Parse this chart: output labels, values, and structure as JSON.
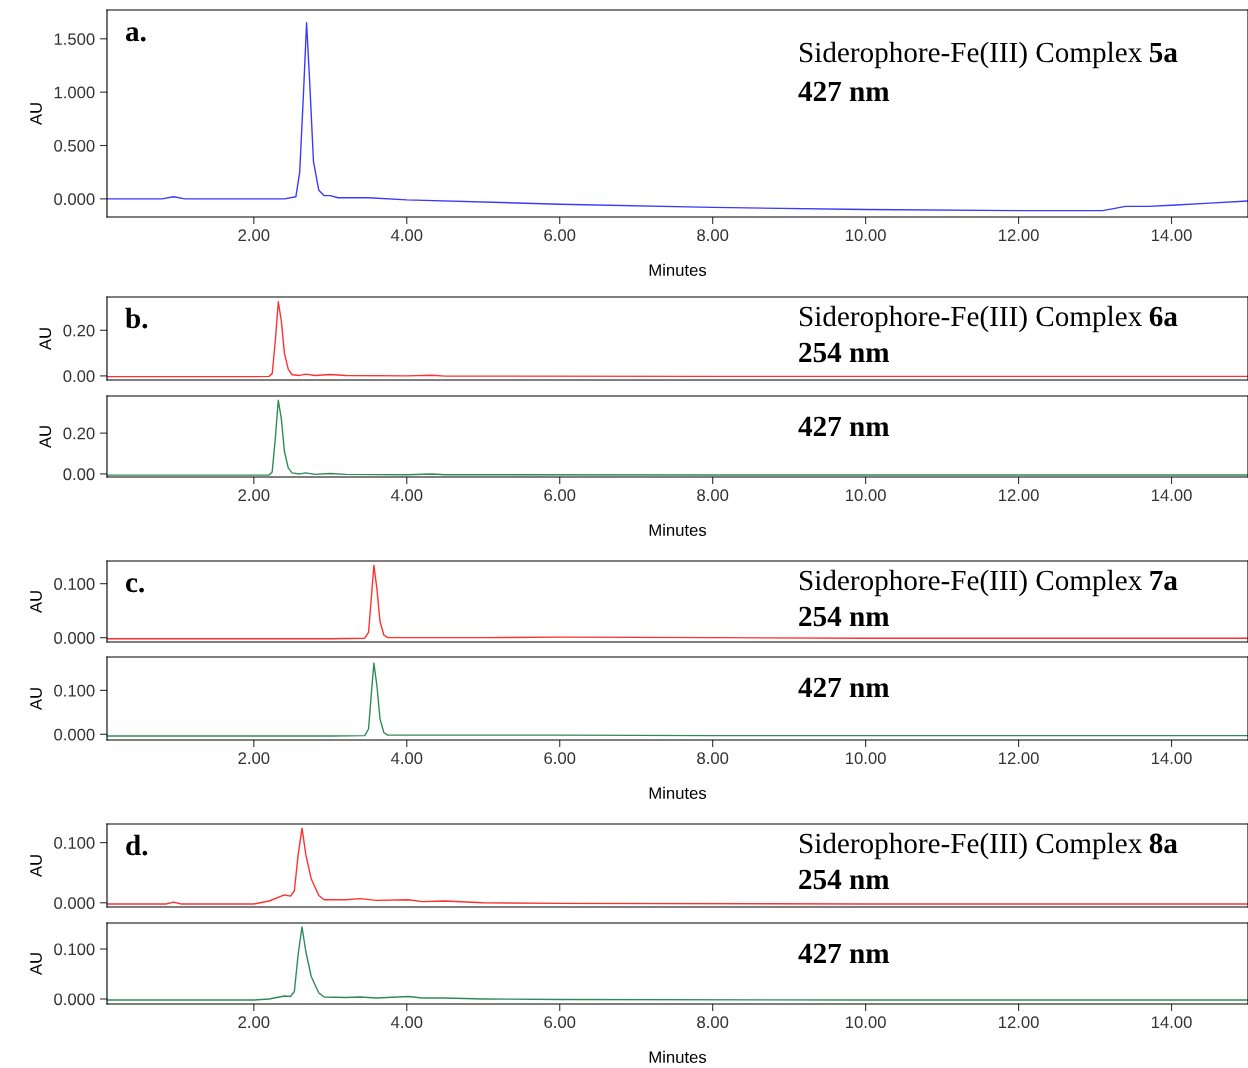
{
  "chart_data": [
    {
      "type": "line",
      "ylabel": "AU",
      "xlabel": "Minutes",
      "annotations": [
        "a.",
        "Siderophore-Fe(III) Complex",
        "5a",
        "427 nm"
      ],
      "xlim": [
        0.08,
        15.0
      ],
      "xticks": [
        {
          "value": 2,
          "label": "2.00"
        },
        {
          "value": 4,
          "label": "4.00"
        },
        {
          "value": 6,
          "label": "6.00"
        },
        {
          "value": 8,
          "label": "8.00"
        },
        {
          "value": 10,
          "label": "10.00"
        },
        {
          "value": 12,
          "label": "12.00"
        },
        {
          "value": 14,
          "label": "14.00"
        }
      ],
      "ylim": [
        -0.17,
        1.77
      ],
      "yticks": [
        {
          "value": 0,
          "label": "0.000"
        },
        {
          "value": 0.5,
          "label": "0.500"
        },
        {
          "value": 1.0,
          "label": "1.000"
        },
        {
          "value": 1.5,
          "label": "1.500"
        }
      ],
      "series": [
        {
          "color": "#3a3aff",
          "x": [
            0.08,
            0.8,
            0.95,
            1.1,
            2.0,
            2.4,
            2.55,
            2.6,
            2.65,
            2.69,
            2.73,
            2.78,
            2.85,
            2.92,
            3.0,
            3.1,
            3.5,
            4.0,
            6.0,
            8.0,
            10.0,
            12.0,
            13.1,
            13.4,
            13.7,
            14.0,
            14.5,
            15.0
          ],
          "values": [
            0.0,
            0.0,
            0.02,
            0.0,
            0.0,
            0.0,
            0.02,
            0.25,
            1.0,
            1.65,
            1.1,
            0.35,
            0.08,
            0.03,
            0.03,
            0.01,
            0.01,
            -0.01,
            -0.05,
            -0.08,
            -0.1,
            -0.11,
            -0.11,
            -0.07,
            -0.07,
            -0.06,
            -0.04,
            -0.02
          ]
        }
      ]
    },
    {
      "type": "line",
      "ylabel": "AU",
      "tick_labels": "y",
      "annotations": [
        "b.",
        "Siderophore-Fe(III) Complex",
        "6a",
        "254 nm"
      ],
      "xlim": [
        0.08,
        15.0
      ],
      "ylim": [
        -0.018,
        0.346
      ],
      "yticks": [
        {
          "value": 0,
          "label": "0.00"
        },
        {
          "value": 0.2,
          "label": "0.20"
        }
      ],
      "series": [
        {
          "color": "#ff3030",
          "x": [
            0.08,
            1.0,
            2.0,
            2.2,
            2.24,
            2.28,
            2.32,
            2.36,
            2.4,
            2.45,
            2.5,
            2.6,
            2.68,
            2.8,
            3.0,
            3.2,
            4.0,
            4.33,
            4.5,
            8.0,
            12.0,
            15.0
          ],
          "values": [
            -0.003,
            -0.003,
            -0.003,
            -0.002,
            0.01,
            0.15,
            0.325,
            0.24,
            0.1,
            0.03,
            0.005,
            0.002,
            0.008,
            0.002,
            0.006,
            0.002,
            0.0,
            0.003,
            -0.001,
            -0.002,
            -0.002,
            -0.002
          ]
        }
      ]
    },
    {
      "type": "line",
      "ylabel": "AU",
      "xlabel": "Minutes",
      "annotations": [
        "427 nm"
      ],
      "xlim": [
        0.08,
        15.0
      ],
      "xticks": [
        {
          "value": 2,
          "label": "2.00"
        },
        {
          "value": 4,
          "label": "4.00"
        },
        {
          "value": 6,
          "label": "6.00"
        },
        {
          "value": 8,
          "label": "8.00"
        },
        {
          "value": 10,
          "label": "10.00"
        },
        {
          "value": 12,
          "label": "12.00"
        },
        {
          "value": 14,
          "label": "14.00"
        }
      ],
      "ylim": [
        -0.015,
        0.382
      ],
      "yticks": [
        {
          "value": 0,
          "label": "0.00"
        },
        {
          "value": 0.2,
          "label": "0.20"
        }
      ],
      "series": [
        {
          "color": "#2e8b57",
          "x": [
            0.08,
            1.0,
            2.0,
            2.2,
            2.24,
            2.28,
            2.32,
            2.36,
            2.4,
            2.45,
            2.5,
            2.6,
            2.68,
            2.8,
            3.0,
            3.2,
            4.0,
            4.33,
            4.5,
            8.0,
            12.0,
            15.0
          ],
          "values": [
            -0.006,
            -0.006,
            -0.006,
            -0.005,
            0.01,
            0.17,
            0.361,
            0.27,
            0.11,
            0.03,
            0.005,
            0.0,
            0.005,
            -0.002,
            0.002,
            -0.002,
            -0.004,
            0.0,
            -0.004,
            -0.005,
            -0.005,
            -0.005
          ]
        }
      ]
    },
    {
      "type": "line",
      "ylabel": "AU",
      "tick_labels": "y",
      "annotations": [
        "c.",
        "Siderophore-Fe(III) Complex",
        "7a",
        "254 nm"
      ],
      "xlim": [
        0.08,
        15.0
      ],
      "ylim": [
        -0.008,
        0.142
      ],
      "yticks": [
        {
          "value": 0,
          "label": "0.000"
        },
        {
          "value": 0.1,
          "label": "0.100"
        }
      ],
      "series": [
        {
          "color": "#ff3030",
          "x": [
            0.08,
            1.0,
            2.0,
            3.0,
            3.45,
            3.5,
            3.54,
            3.57,
            3.61,
            3.65,
            3.7,
            3.75,
            5.0,
            6.0,
            8.0,
            10.0,
            12.0,
            15.0
          ],
          "values": [
            -0.002,
            -0.002,
            -0.002,
            -0.002,
            -0.001,
            0.01,
            0.08,
            0.134,
            0.09,
            0.03,
            0.005,
            0.0,
            0.0,
            0.001,
            0.0,
            -0.001,
            -0.001,
            -0.001
          ]
        }
      ]
    },
    {
      "type": "line",
      "ylabel": "AU",
      "xlabel": "Minutes",
      "annotations": [
        "427 nm"
      ],
      "xlim": [
        0.08,
        15.0
      ],
      "xticks": [
        {
          "value": 2,
          "label": "2.00"
        },
        {
          "value": 4,
          "label": "4.00"
        },
        {
          "value": 6,
          "label": "6.00"
        },
        {
          "value": 8,
          "label": "8.00"
        },
        {
          "value": 10,
          "label": "10.00"
        },
        {
          "value": 12,
          "label": "12.00"
        },
        {
          "value": 14,
          "label": "14.00"
        }
      ],
      "ylim": [
        -0.013,
        0.176
      ],
      "yticks": [
        {
          "value": 0,
          "label": "0.000"
        },
        {
          "value": 0.1,
          "label": "0.100"
        }
      ],
      "series": [
        {
          "color": "#2e8b57",
          "x": [
            0.08,
            1.0,
            2.0,
            3.0,
            3.45,
            3.5,
            3.54,
            3.57,
            3.61,
            3.65,
            3.7,
            3.75,
            5.0,
            6.0,
            8.0,
            10.0,
            12.0,
            15.0
          ],
          "values": [
            -0.004,
            -0.004,
            -0.004,
            -0.004,
            -0.003,
            0.012,
            0.1,
            0.162,
            0.11,
            0.035,
            0.004,
            -0.002,
            -0.002,
            -0.002,
            -0.003,
            -0.003,
            -0.003,
            -0.003
          ]
        }
      ]
    },
    {
      "type": "line",
      "ylabel": "AU",
      "tick_labels": "y",
      "annotations": [
        "d.",
        "Siderophore-Fe(III) Complex",
        "8a",
        "254 nm"
      ],
      "xlim": [
        0.08,
        15.0
      ],
      "ylim": [
        -0.007,
        0.131
      ],
      "yticks": [
        {
          "value": 0,
          "label": "0.000"
        },
        {
          "value": 0.1,
          "label": "0.100"
        }
      ],
      "series": [
        {
          "color": "#ff3030",
          "x": [
            0.08,
            0.85,
            0.95,
            1.05,
            2.0,
            2.2,
            2.4,
            2.48,
            2.53,
            2.58,
            2.63,
            2.68,
            2.75,
            2.85,
            2.92,
            3.2,
            3.39,
            3.6,
            4.02,
            4.2,
            4.49,
            5.0,
            6.0,
            10.0,
            15.0
          ],
          "values": [
            -0.002,
            -0.002,
            0.001,
            -0.002,
            -0.002,
            0.003,
            0.013,
            0.011,
            0.02,
            0.08,
            0.124,
            0.08,
            0.04,
            0.012,
            0.005,
            0.005,
            0.007,
            0.004,
            0.005,
            0.002,
            0.003,
            0.0,
            -0.001,
            -0.002,
            -0.002
          ]
        }
      ]
    },
    {
      "type": "line",
      "ylabel": "AU",
      "xlabel": "Minutes",
      "annotations": [
        "427 nm"
      ],
      "xlim": [
        0.08,
        15.0
      ],
      "xticks": [
        {
          "value": 2,
          "label": "2.00"
        },
        {
          "value": 4,
          "label": "4.00"
        },
        {
          "value": 6,
          "label": "6.00"
        },
        {
          "value": 8,
          "label": "8.00"
        },
        {
          "value": 10,
          "label": "10.00"
        },
        {
          "value": 12,
          "label": "12.00"
        },
        {
          "value": 14,
          "label": "14.00"
        }
      ],
      "ylim": [
        -0.01,
        0.152
      ],
      "yticks": [
        {
          "value": 0,
          "label": "0.000"
        },
        {
          "value": 0.1,
          "label": "0.100"
        }
      ],
      "series": [
        {
          "color": "#2e8b57",
          "x": [
            0.08,
            1.0,
            2.0,
            2.2,
            2.4,
            2.48,
            2.53,
            2.58,
            2.63,
            2.68,
            2.75,
            2.85,
            2.92,
            3.2,
            3.39,
            3.6,
            4.02,
            4.2,
            4.49,
            5.0,
            6.0,
            10.0,
            15.0
          ],
          "values": [
            -0.002,
            -0.002,
            -0.002,
            0.0,
            0.006,
            0.005,
            0.015,
            0.09,
            0.144,
            0.095,
            0.045,
            0.012,
            0.004,
            0.003,
            0.004,
            0.002,
            0.005,
            0.002,
            0.002,
            0.0,
            -0.001,
            -0.002,
            -0.002
          ]
        }
      ]
    }
  ]
}
